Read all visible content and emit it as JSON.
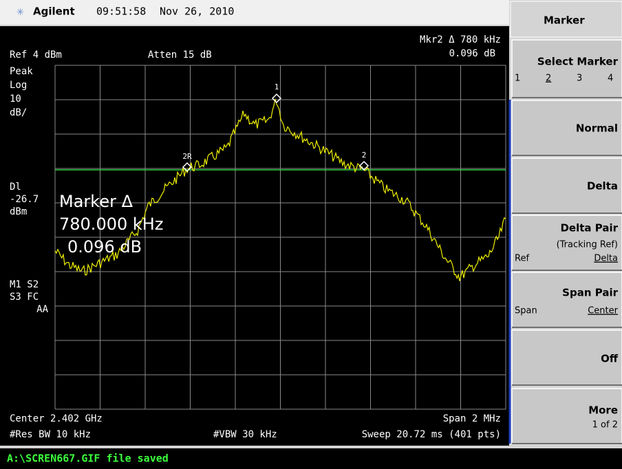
{
  "header": {
    "brand": "Agilent",
    "time": "09:51:58",
    "date": "Nov 26, 2010"
  },
  "screen": {
    "marker_readout": "Mkr2 Δ  780 kHz",
    "marker_readout_value": "0.096 dB",
    "ref": "Ref 4 dBm",
    "atten": "Atten 15 dB",
    "left_labels": [
      "Peak",
      "Log",
      "10",
      "dB/"
    ],
    "display_line": [
      "Dl",
      "-26.7",
      "dBm"
    ],
    "flags": [
      "M1 S2",
      "S3 FC",
      "AA"
    ],
    "big_marker": [
      "Marker Δ",
      "780.000 kHz",
      "0.096 dB"
    ],
    "marker_labels": [
      "1",
      "2R",
      "2"
    ],
    "center": "Center 2.402 GHz",
    "span": "Span 2 MHz",
    "res_bw": "#Res BW 10 kHz",
    "vbw": "#VBW 30 kHz",
    "sweep": "Sweep 20.72 ms (401 pts)"
  },
  "menu": {
    "title": "Marker",
    "select_marker": {
      "label": "Select Marker",
      "options": [
        "1",
        "2",
        "3",
        "4"
      ]
    },
    "normal": "Normal",
    "delta": "Delta",
    "delta_pair": {
      "label": "Delta Pair",
      "sub": "(Tracking Ref)",
      "left": "Ref",
      "right": "Delta"
    },
    "span_pair": {
      "label": "Span Pair",
      "left": "Span",
      "right": "Center"
    },
    "off": "Off",
    "more": {
      "label": "More",
      "sub": "1 of 2"
    }
  },
  "status": "A:\\SCREN667.GIF file saved"
}
